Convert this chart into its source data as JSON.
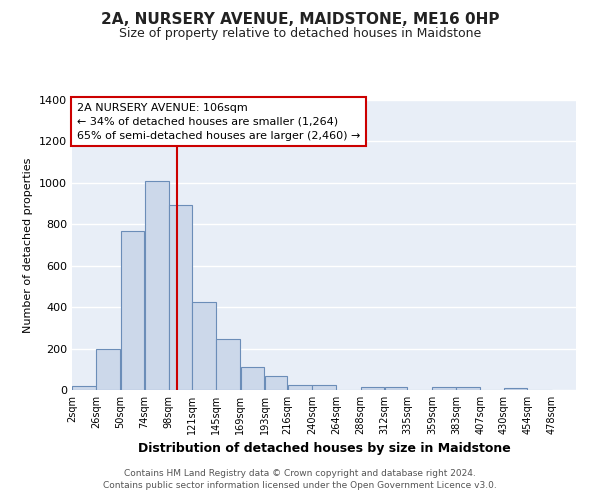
{
  "title": "2A, NURSERY AVENUE, MAIDSTONE, ME16 0HP",
  "subtitle": "Size of property relative to detached houses in Maidstone",
  "xlabel": "Distribution of detached houses by size in Maidstone",
  "ylabel": "Number of detached properties",
  "bar_left_edges": [
    2,
    26,
    50,
    74,
    98,
    121,
    145,
    169,
    193,
    216,
    240,
    264,
    288,
    312,
    335,
    359,
    383,
    407,
    430,
    454
  ],
  "bar_widths": [
    24,
    24,
    24,
    24,
    23,
    24,
    24,
    24,
    23,
    24,
    24,
    24,
    24,
    23,
    24,
    24,
    24,
    23,
    24,
    24
  ],
  "bar_heights": [
    20,
    200,
    770,
    1010,
    895,
    425,
    245,
    110,
    70,
    25,
    25,
    0,
    15,
    15,
    0,
    15,
    15,
    0,
    10,
    0
  ],
  "bar_face_color": "#ccd8ea",
  "bar_edge_color": "#6b8db8",
  "bg_color": "#e8eef7",
  "grid_color": "#ffffff",
  "vline_x": 106,
  "vline_color": "#cc0000",
  "box_text_line1": "2A NURSERY AVENUE: 106sqm",
  "box_text_line2": "← 34% of detached houses are smaller (1,264)",
  "box_text_line3": "65% of semi-detached houses are larger (2,460) →",
  "ylim": [
    0,
    1400
  ],
  "yticks": [
    0,
    200,
    400,
    600,
    800,
    1000,
    1200,
    1400
  ],
  "xlim": [
    2,
    502
  ],
  "tick_labels": [
    "2sqm",
    "26sqm",
    "50sqm",
    "74sqm",
    "98sqm",
    "121sqm",
    "145sqm",
    "169sqm",
    "193sqm",
    "216sqm",
    "240sqm",
    "264sqm",
    "288sqm",
    "312sqm",
    "335sqm",
    "359sqm",
    "383sqm",
    "407sqm",
    "430sqm",
    "454sqm",
    "478sqm"
  ],
  "tick_positions": [
    2,
    26,
    50,
    74,
    98,
    121,
    145,
    169,
    193,
    216,
    240,
    264,
    288,
    312,
    335,
    359,
    383,
    407,
    430,
    454,
    478
  ],
  "footer_line1": "Contains HM Land Registry data © Crown copyright and database right 2024.",
  "footer_line2": "Contains public sector information licensed under the Open Government Licence v3.0."
}
